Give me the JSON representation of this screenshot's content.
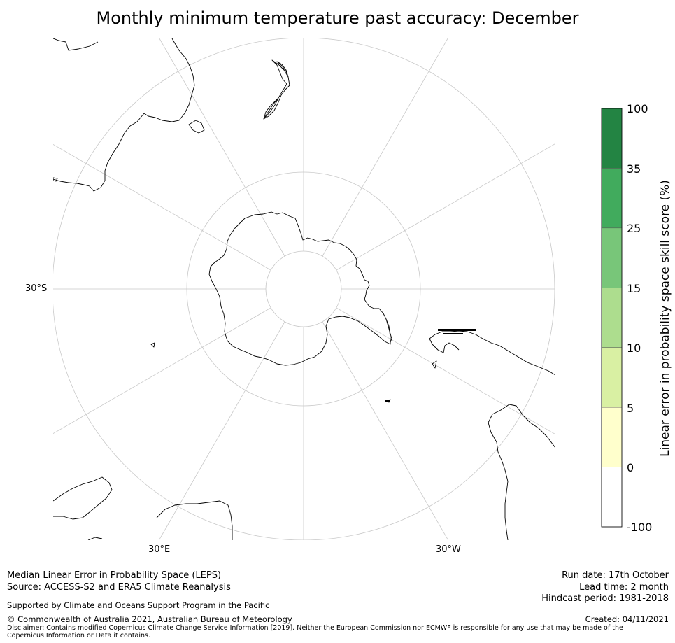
{
  "title": "Monthly minimum temperature past accuracy: December",
  "map": {
    "projection": "south-polar-stereographic",
    "labels": {
      "lat_30s": "30°S",
      "lon_30e": "30°E",
      "lon_30w": "30°W"
    }
  },
  "colorbar": {
    "title": "Linear error in probability space skill score (%)",
    "ticks": [
      "100",
      "35",
      "25",
      "15",
      "10",
      "5",
      "0",
      "-100"
    ],
    "colors": [
      "#238443",
      "#41ab5d",
      "#78c679",
      "#addd8e",
      "#d9f0a3",
      "#ffffcc",
      "#ffffff"
    ]
  },
  "footer": {
    "left": {
      "line1": "Median Linear Error in Probability Space (LEPS)",
      "line2": "Source: ACCESS-S2 and ERA5 Climate Reanalysis",
      "support": "Supported by Climate and Oceans Support Program in the Pacific",
      "copyright": "© Commonwealth of Australia 2021, Australian Bureau of Meteorology",
      "disclaimer": "Disclaimer: Contains modified Copernicus Climate Change Service Information [2019]. Neither the European Commission nor ECMWF is responsible for any use that may be made of the Copernicus Information or Data it contains."
    },
    "right": {
      "run_date": "Run date: 17th October",
      "lead_time": "Lead time: 2 month",
      "hindcast": "Hindcast period: 1981-2018",
      "created": "Created: 04/11/2021"
    }
  }
}
